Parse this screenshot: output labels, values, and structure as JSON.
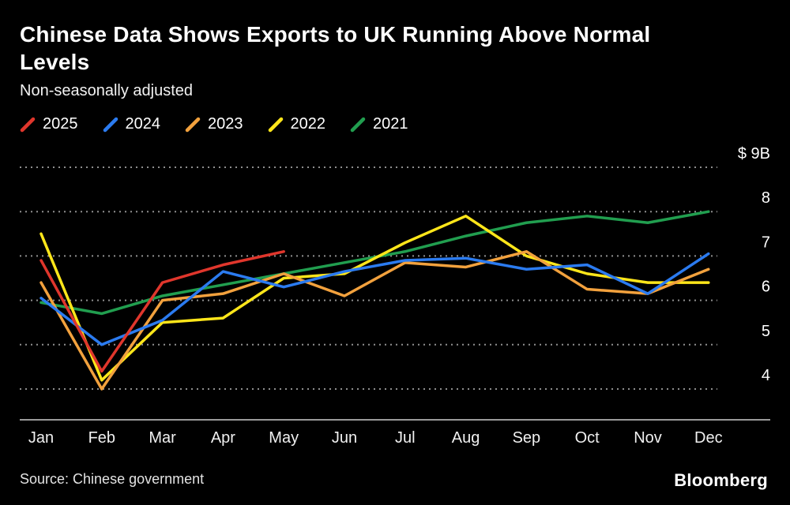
{
  "chart_data": {
    "type": "line",
    "title": "Chinese Data Shows Exports to UK Running Above Normal Levels",
    "subtitle": "Non-seasonally adjusted",
    "categories": [
      "Jan",
      "Feb",
      "Mar",
      "Apr",
      "May",
      "Jun",
      "Jul",
      "Aug",
      "Sep",
      "Oct",
      "Nov",
      "Dec"
    ],
    "y_ticks": [
      {
        "value": 9,
        "label": "$ 9B"
      },
      {
        "value": 8,
        "label": "8"
      },
      {
        "value": 7,
        "label": "7"
      },
      {
        "value": 6,
        "label": "6"
      },
      {
        "value": 5,
        "label": "5"
      },
      {
        "value": 4,
        "label": "4"
      }
    ],
    "ylim": [
      3.6,
      9.3
    ],
    "grid": "horizontal-dotted",
    "legend_position": "top-left",
    "series": [
      {
        "name": "2021",
        "color": "#219e4f",
        "values": [
          5.95,
          5.7,
          6.1,
          6.35,
          6.6,
          6.85,
          7.1,
          7.45,
          7.75,
          7.9,
          7.75,
          8.0
        ]
      },
      {
        "name": "2022",
        "color": "#ffe61a",
        "values": [
          7.5,
          4.2,
          5.5,
          5.6,
          6.5,
          6.6,
          7.3,
          7.9,
          7.0,
          6.6,
          6.4,
          6.4
        ]
      },
      {
        "name": "2023",
        "color": "#f2a13d",
        "values": [
          6.4,
          4.0,
          6.0,
          6.15,
          6.6,
          6.1,
          6.85,
          6.75,
          7.1,
          6.25,
          6.15,
          6.7
        ]
      },
      {
        "name": "2024",
        "color": "#2b7bf0",
        "values": [
          6.05,
          5.0,
          5.55,
          6.65,
          6.3,
          6.65,
          6.9,
          6.95,
          6.7,
          6.8,
          6.15,
          7.05
        ]
      },
      {
        "name": "2025",
        "color": "#e0362c",
        "values": [
          6.9,
          4.4,
          6.4,
          6.8,
          7.1
        ]
      }
    ]
  },
  "footer": {
    "source": "Source: Chinese government",
    "brand": "Bloomberg"
  }
}
